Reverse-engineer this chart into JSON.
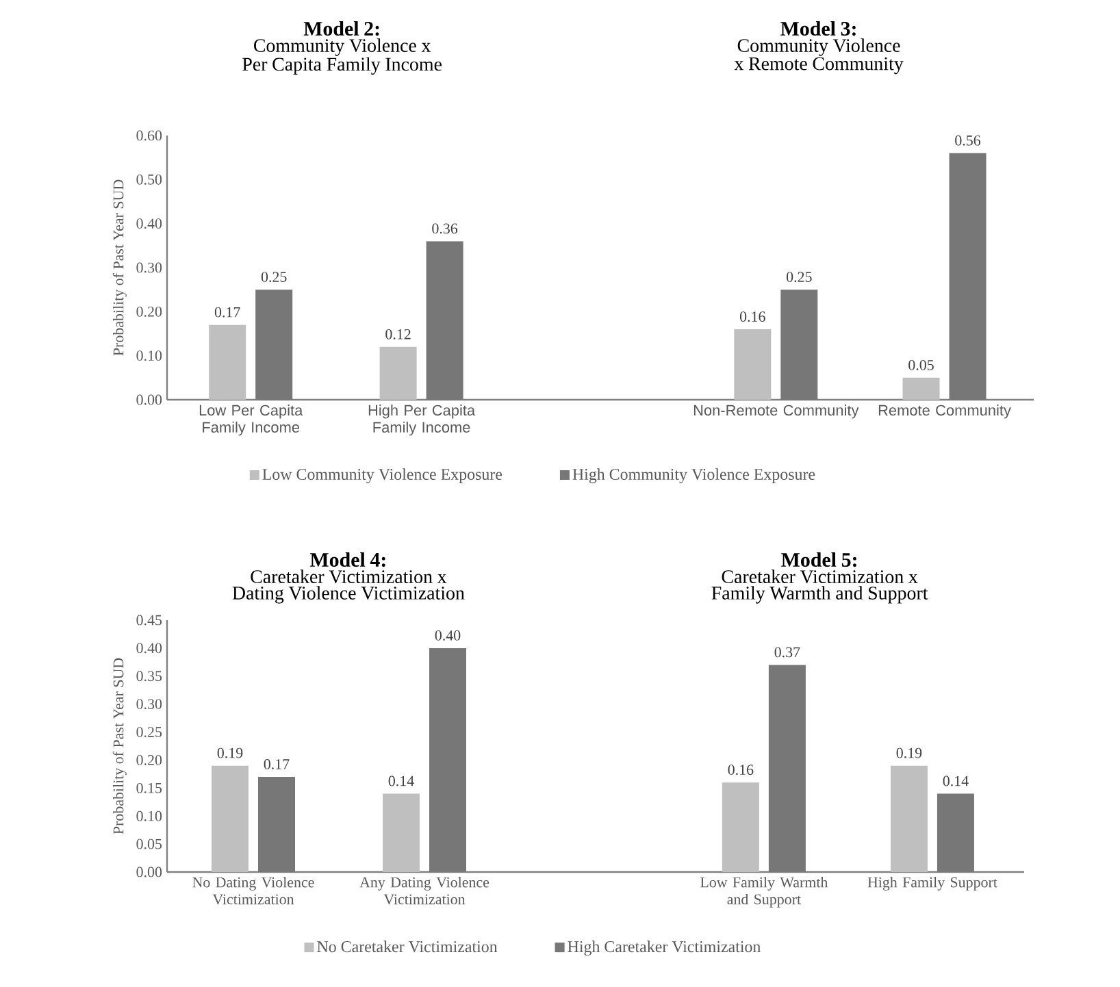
{
  "chart_data": [
    {
      "type": "bar",
      "title": "Model 2:",
      "subtitle": "Community Violence x Per Capita Family Income",
      "ylabel": "Probability of Past Year SUD",
      "categories": [
        "Low Per Capita Family Income",
        "High Per Capita Family Income"
      ],
      "series": [
        {
          "name": "Low Community Violence Exposure",
          "color": "#bfbfbf",
          "values": [
            0.17,
            0.12
          ],
          "value_labels": [
            "0.17",
            "0.12"
          ]
        },
        {
          "name": "High Community Violence Exposure",
          "color": "#777777",
          "values": [
            0.25,
            0.36
          ],
          "value_labels": [
            "0.25",
            "0.36"
          ]
        }
      ],
      "ylim": [
        0,
        0.6
      ],
      "yticks": [
        {
          "value": 0,
          "label": "0.00"
        },
        {
          "value": 0.1,
          "label": "0.10"
        },
        {
          "value": 0.2,
          "label": "0.20"
        },
        {
          "value": 0.3,
          "label": "0.30"
        },
        {
          "value": 0.4,
          "label": "0.40"
        },
        {
          "value": 0.5,
          "label": "0.50"
        },
        {
          "value": 0.6,
          "label": "0.60"
        }
      ],
      "legend": "bottom"
    },
    {
      "type": "bar",
      "title": "Model 3:",
      "subtitle": "Community Violence x Remote Community",
      "categories": [
        "Non-Remote Community",
        "Remote Community"
      ],
      "series": [
        {
          "color": "#bfbfbf",
          "values": [
            0.16,
            0.05
          ],
          "value_labels": [
            "0.16",
            "0.05"
          ]
        },
        {
          "color": "#777777",
          "values": [
            0.25,
            0.56
          ],
          "value_labels": [
            "0.25",
            "0.56"
          ]
        }
      ],
      "ylim": [
        0,
        0.6
      ],
      "tick_labels": "x"
    },
    {
      "type": "bar",
      "title": "Model 4:",
      "subtitle": "Caretaker Victimization x Dating Violence Victimization",
      "ylabel": "Probability of Past Year SUD",
      "categories": [
        "No Dating Violence Victimization",
        "Any Dating Violence Victimization"
      ],
      "series": [
        {
          "name": "No Caretaker Victimization",
          "color": "#bfbfbf",
          "values": [
            0.19,
            0.14
          ],
          "value_labels": [
            "0.19",
            "0.14"
          ]
        },
        {
          "name": "High Caretaker Victimization",
          "color": "#777777",
          "values": [
            0.17,
            0.4
          ],
          "value_labels": [
            "0.17",
            "0.40"
          ]
        }
      ],
      "ylim": [
        0,
        0.45
      ],
      "yticks": [
        {
          "value": 0,
          "label": "0.00"
        },
        {
          "value": 0.05,
          "label": "0.05"
        },
        {
          "value": 0.1,
          "label": "0.10"
        },
        {
          "value": 0.15,
          "label": "0.15"
        },
        {
          "value": 0.2,
          "label": "0.20"
        },
        {
          "value": 0.25,
          "label": "0.25"
        },
        {
          "value": 0.3,
          "label": "0.30"
        },
        {
          "value": 0.35,
          "label": "0.35"
        },
        {
          "value": 0.4,
          "label": "0.40"
        },
        {
          "value": 0.45,
          "label": "0.45"
        }
      ],
      "legend": "bottom"
    },
    {
      "type": "bar",
      "title": "Model 5:",
      "subtitle": "Caretaker Victimization x Family Warmth and Support",
      "categories": [
        "Low Family Warmth and Support",
        "High Family Support"
      ],
      "series": [
        {
          "color": "#bfbfbf",
          "values": [
            0.16,
            0.19
          ],
          "value_labels": [
            "0.16",
            "0.19"
          ]
        },
        {
          "color": "#777777",
          "values": [
            0.37,
            0.14
          ],
          "value_labels": [
            "0.37",
            "0.14"
          ]
        }
      ],
      "ylim": [
        0,
        0.45
      ],
      "tick_labels": "x"
    }
  ]
}
